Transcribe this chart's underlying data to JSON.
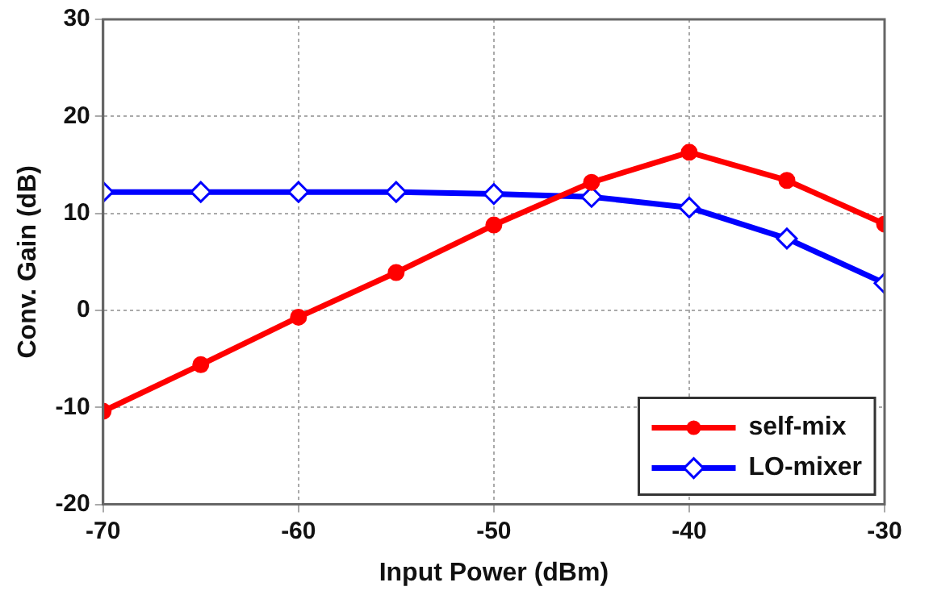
{
  "chart_data": {
    "type": "line",
    "xlabel": "Input Power (dBm)",
    "ylabel": "Conv. Gain (dB)",
    "x": [
      -70,
      -65,
      -60,
      -55,
      -50,
      -45,
      -40,
      -35,
      -30
    ],
    "series": [
      {
        "name": "self-mix",
        "color": "#ff0000",
        "marker": "circle",
        "values": [
          -10.4,
          -5.6,
          -0.7,
          3.9,
          8.8,
          13.2,
          16.3,
          13.4,
          8.9
        ]
      },
      {
        "name": "LO-mixer",
        "color": "#0000ff",
        "marker": "diamond",
        "values": [
          12.2,
          12.2,
          12.2,
          12.2,
          12.0,
          11.7,
          10.6,
          7.4,
          2.8
        ]
      }
    ],
    "xlim": [
      -70,
      -30
    ],
    "xticks": [
      -70,
      -60,
      -50,
      -40,
      -30
    ],
    "ylim": [
      -20,
      30
    ],
    "yticks": [
      -20,
      -10,
      0,
      10,
      20,
      30
    ],
    "grid": true,
    "legend": "bottom right",
    "line_style": "solid"
  }
}
